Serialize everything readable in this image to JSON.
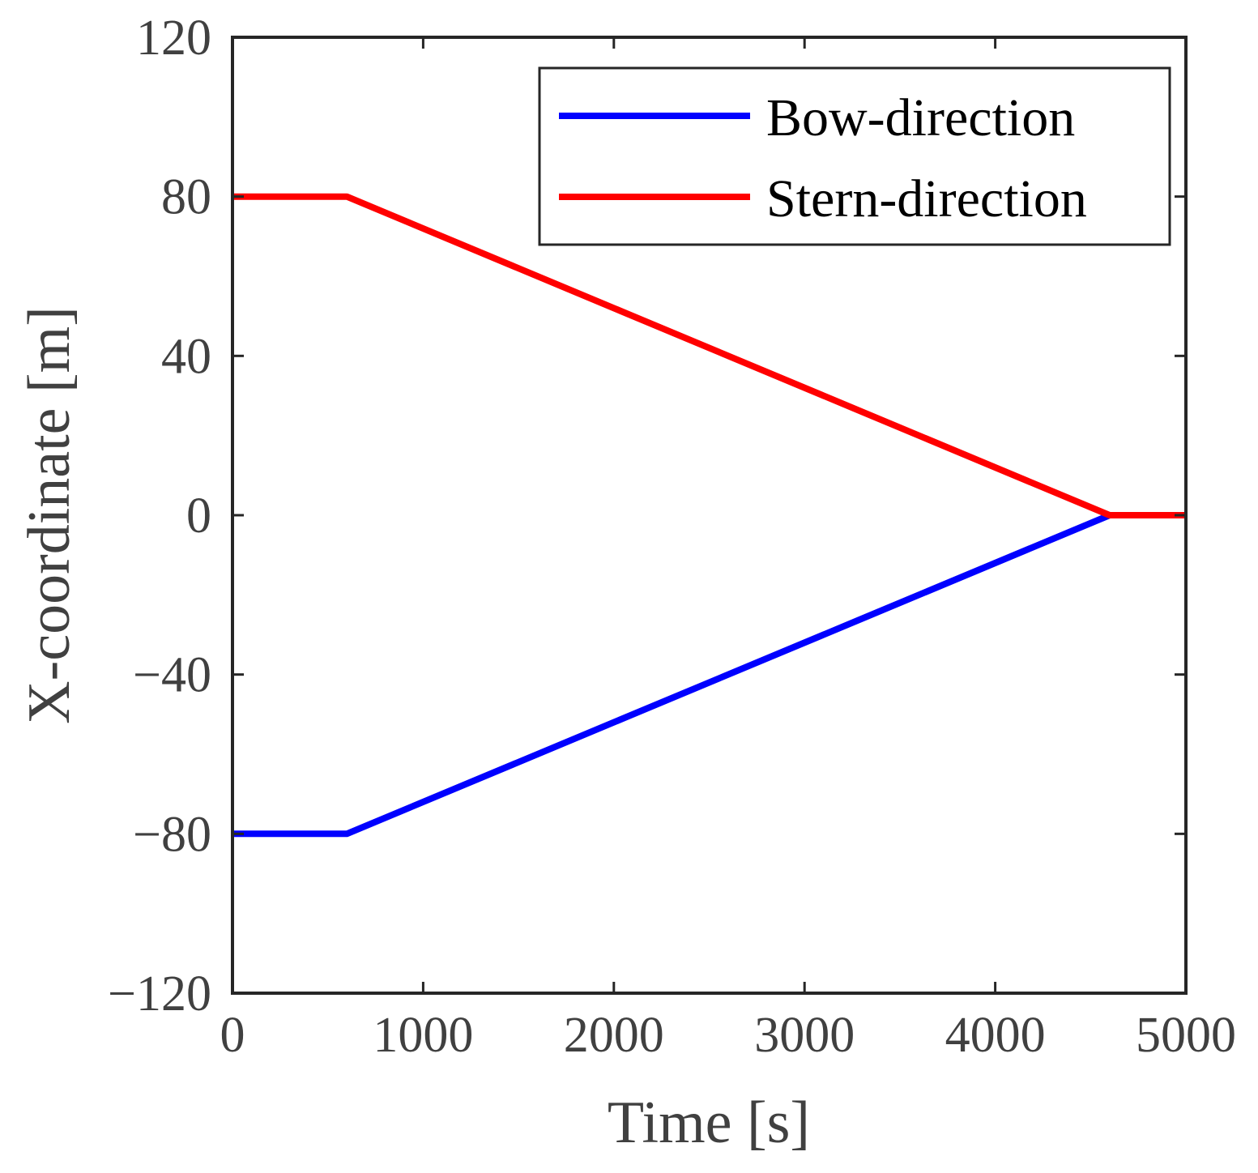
{
  "chart_data": {
    "type": "line",
    "title": "",
    "xlabel": "Time [s]",
    "ylabel": "X-coordinate [m]",
    "xlim": [
      0,
      5000
    ],
    "ylim": [
      -120,
      120
    ],
    "xticks": [
      0,
      1000,
      2000,
      3000,
      4000,
      5000
    ],
    "xtick_labels": [
      "0",
      "1000",
      "2000",
      "3000",
      "4000",
      "5000"
    ],
    "yticks": [
      -120,
      -80,
      -40,
      0,
      40,
      80,
      120
    ],
    "ytick_labels": [
      "−120",
      "−80",
      "−40",
      "0",
      "40",
      "80",
      "120"
    ],
    "grid": false,
    "legend_position": "top-right",
    "series": [
      {
        "name": "Bow-direction",
        "color": "#0000ff",
        "x": [
          0,
          600,
          4600,
          5000
        ],
        "y": [
          -80,
          -80,
          0,
          0
        ]
      },
      {
        "name": "Stern-direction",
        "color": "#ff0000",
        "x": [
          0,
          600,
          4600,
          5000
        ],
        "y": [
          80,
          80,
          0,
          0
        ]
      }
    ]
  }
}
